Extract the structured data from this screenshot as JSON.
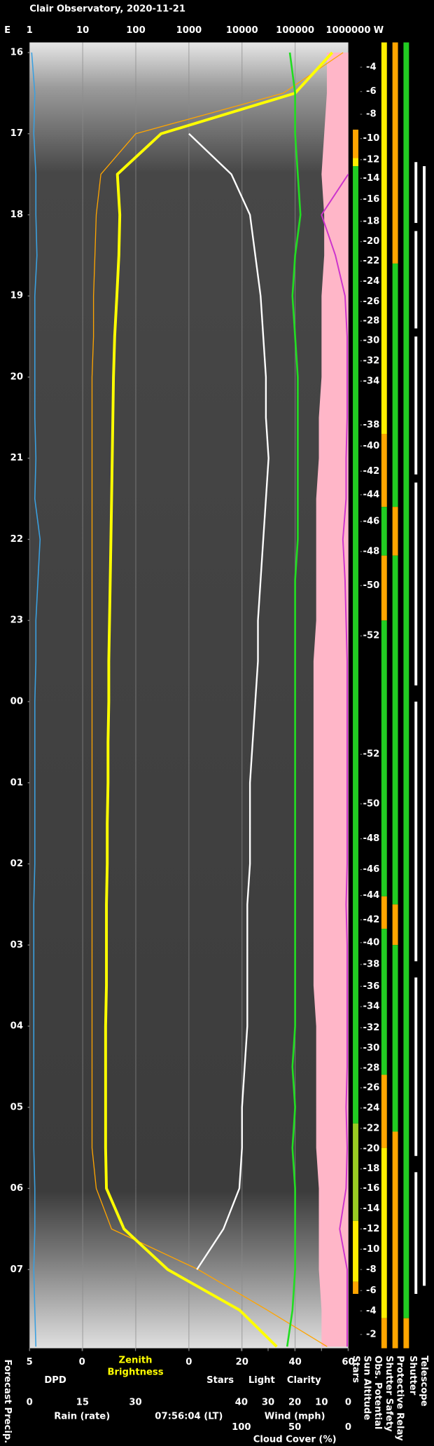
{
  "title": "Clair Observatory, 2020-11-21",
  "east_label": "E",
  "west_label": "W",
  "timestamp": "07:56:04 (LT)",
  "forecast_precip": "Forecast Precip.",
  "chart_data": {
    "type": "line",
    "xscale": "log",
    "xlim": [
      1,
      1000000
    ],
    "xticks": [
      1,
      10,
      100,
      1000,
      10000,
      100000,
      1000000
    ],
    "grid": true,
    "ylim": [
      15.875,
      31.97
    ],
    "yticks": [
      16,
      17,
      18,
      19,
      20,
      21,
      22,
      23,
      {
        "value": 24,
        "label": "00"
      },
      {
        "value": 25,
        "label": "01"
      },
      {
        "value": 26,
        "label": "02"
      },
      {
        "value": 27,
        "label": "03"
      },
      {
        "value": 28,
        "label": "04"
      },
      {
        "value": 29,
        "label": "05"
      },
      {
        "value": 30,
        "label": "06"
      },
      {
        "value": 31,
        "label": "07"
      }
    ],
    "axes": {
      "dpd": {
        "label": "DPD",
        "color": "#2f8fe8",
        "lim": [
          5,
          0
        ],
        "ticks": [
          5,
          0
        ]
      },
      "stars": {
        "lim": [
          0,
          60
        ],
        "ticks": [
          0,
          20,
          40,
          60
        ]
      },
      "rain": {
        "label": "Rain (rate)",
        "color": "#22b8f0",
        "lim": [
          0,
          30
        ],
        "ticks": [
          0,
          15,
          30
        ]
      },
      "wind": {
        "label": "Wind (mph)",
        "color": "#ff9fc0",
        "lim": [
          40,
          0
        ],
        "ticks": [
          40,
          30,
          20,
          10,
          0
        ]
      },
      "cloud": {
        "label": "Cloud Cover (%)",
        "color": "#e020e0",
        "lim": [
          100,
          0
        ],
        "ticks": [
          100,
          50,
          0
        ]
      }
    },
    "x": [
      16,
      16.5,
      17,
      17.5,
      18,
      18.5,
      19,
      19.5,
      20,
      20.5,
      21,
      21.5,
      22,
      22.5,
      23,
      23.5,
      24,
      24.5,
      25,
      25.5,
      26,
      26.5,
      27,
      27.5,
      28,
      28.5,
      29,
      29.5,
      30,
      30.5,
      31,
      31.5,
      31.95
    ],
    "series": [
      {
        "axis": "dpd",
        "color": "#3aa0e0",
        "values": [
          4.8,
          4.5,
          4.6,
          4.4,
          4.4,
          4.3,
          4.5,
          4.5,
          4.5,
          4.5,
          4.4,
          4.5,
          4.0,
          4.2,
          4.4,
          4.4,
          4.5,
          4.5,
          4.5,
          4.5,
          4.5,
          4.6,
          4.6,
          4.6,
          4.6,
          4.6,
          4.6,
          4.6,
          4.5,
          4.5,
          4.6,
          4.5,
          4.4
        ]
      },
      {
        "name": "Zenith Brightness",
        "axis": "x",
        "color": "#ffff00",
        "values": [
          500000,
          100000,
          300,
          45,
          50,
          48,
          44,
          40,
          38,
          37,
          36,
          35,
          34,
          33,
          32,
          31,
          31,
          30,
          30,
          29,
          29,
          28,
          28,
          28,
          27,
          27,
          27,
          27,
          28,
          60,
          400,
          9000,
          45000
        ]
      },
      {
        "name": "Light",
        "axis": "x",
        "color": "#ffa500",
        "values": [
          800000,
          60000,
          100,
          22,
          18,
          17,
          16,
          16,
          15,
          15,
          15,
          15,
          15,
          15,
          15,
          15,
          15,
          15,
          15,
          15,
          15,
          15,
          15,
          15,
          15,
          15,
          15,
          15,
          18,
          35,
          1500,
          30000,
          400000
        ]
      },
      {
        "name": "Stars",
        "axis": "stars",
        "color": "#ffffff",
        "values": [
          null,
          null,
          0,
          16,
          23,
          25,
          27,
          28,
          29,
          29,
          30,
          29,
          28,
          27,
          26,
          26,
          25,
          24,
          23,
          23,
          23,
          22,
          22,
          22,
          22,
          21,
          20,
          20,
          19,
          13,
          3,
          null,
          null
        ]
      },
      {
        "name": "Clarity",
        "axis": "stars",
        "color": "#22dd22",
        "values": [
          38,
          40,
          40,
          41,
          42,
          40,
          39,
          40,
          41,
          41,
          41,
          41,
          41,
          40,
          40,
          40,
          40,
          40,
          40,
          40,
          40,
          40,
          40,
          40,
          40,
          39,
          40,
          39,
          40,
          40,
          40,
          39,
          37
        ]
      },
      {
        "axis": "cloud",
        "color": "#cc33cc",
        "values": [
          null,
          null,
          null,
          0,
          25,
          12,
          3,
          1,
          1,
          1,
          2,
          2,
          5,
          3,
          2,
          1,
          1,
          1,
          1,
          1,
          1,
          2,
          1,
          1,
          1,
          1,
          2,
          1,
          2,
          8,
          1,
          1,
          1
        ]
      },
      {
        "axis": "wind",
        "kind": "area",
        "color": "#ffb6c8",
        "values": [
          8,
          8,
          9,
          10,
          9,
          9,
          10,
          10,
          10,
          11,
          11,
          12,
          12,
          12,
          12,
          13,
          13,
          13,
          13,
          13,
          13,
          13,
          13,
          13,
          12,
          12,
          12,
          12,
          11,
          11,
          11,
          10,
          10
        ]
      }
    ],
    "sun_altitude": {
      "name": "Sun Altitude",
      "values": [
        -4,
        -6,
        -8,
        -10,
        -12,
        -14,
        -16,
        -18,
        -20,
        -22,
        -24,
        -26,
        -28,
        -30,
        -32,
        -34,
        -38,
        -40,
        -42,
        -44,
        -46,
        -48,
        -50,
        -52,
        -52,
        -50,
        -48,
        -46,
        -44,
        -42,
        -40,
        -38,
        -36,
        -34,
        -32,
        -30,
        -28,
        -26,
        -24,
        -22,
        -20,
        -18,
        -16,
        -14,
        -12,
        -10,
        -8,
        -6,
        -4,
        -2
      ],
      "times": [
        16.18,
        16.48,
        16.76,
        17.06,
        17.32,
        17.55,
        17.81,
        18.08,
        18.33,
        18.57,
        18.82,
        19.07,
        19.31,
        19.55,
        19.8,
        20.05,
        20.59,
        20.85,
        21.16,
        21.45,
        21.78,
        22.15,
        22.57,
        23.19,
        24.65,
        25.26,
        25.69,
        26.07,
        26.39,
        26.69,
        26.97,
        27.24,
        27.51,
        27.76,
        28.02,
        28.27,
        28.52,
        28.76,
        29.01,
        29.26,
        29.51,
        29.76,
        30.0,
        30.25,
        30.5,
        30.75,
        31.0,
        31.26,
        31.51,
        31.8
      ]
    },
    "status": [
      {
        "name": "Stars",
        "segments": [
          [
            16.95,
            17.3,
            "#ffa500"
          ],
          [
            17.3,
            17.4,
            "#ffee00"
          ],
          [
            17.4,
            29.2,
            "#22cc22"
          ],
          [
            29.2,
            30.4,
            "#99cc22"
          ],
          [
            30.4,
            31.15,
            "#ffee00"
          ],
          [
            31.15,
            31.3,
            "#ffa500"
          ]
        ]
      },
      {
        "name": "Obs. Potential",
        "segments": [
          [
            15.875,
            20.7,
            "#ffee00"
          ],
          [
            20.7,
            21.6,
            "#ffa500"
          ],
          [
            21.6,
            22.2,
            "#22cc22"
          ],
          [
            22.2,
            23.0,
            "#ffa500"
          ],
          [
            23.0,
            26.4,
            "#22cc22"
          ],
          [
            26.4,
            26.8,
            "#ffa500"
          ],
          [
            26.8,
            28.6,
            "#22cc22"
          ],
          [
            28.6,
            29.5,
            "#ffa500"
          ],
          [
            29.5,
            31.6,
            "#ffee00"
          ],
          [
            31.6,
            31.97,
            "#ffa500"
          ]
        ]
      },
      {
        "name": "Shutter Safety",
        "segments": [
          [
            15.875,
            18.6,
            "#ffa500"
          ],
          [
            18.6,
            21.6,
            "#22cc22"
          ],
          [
            21.6,
            22.2,
            "#ffa500"
          ],
          [
            22.2,
            26.5,
            "#22cc22"
          ],
          [
            26.5,
            27.0,
            "#ffa500"
          ],
          [
            27.0,
            29.3,
            "#22cc22"
          ],
          [
            29.3,
            31.97,
            "#ffa500"
          ]
        ]
      },
      {
        "name": "Protective Relay",
        "segments": [
          [
            15.875,
            31.6,
            "#22cc22"
          ],
          [
            31.6,
            31.97,
            "#ffa500"
          ]
        ]
      },
      {
        "name": "Shutter",
        "segments": [
          [
            17.35,
            18.1,
            "#ffffff"
          ],
          [
            18.2,
            19.4,
            "#ffffff"
          ],
          [
            19.5,
            21.2,
            "#ffffff"
          ],
          [
            21.3,
            23.8,
            "#ffffff"
          ],
          [
            24.0,
            27.2,
            "#ffffff"
          ],
          [
            27.4,
            29.6,
            "#ffffff"
          ],
          [
            29.8,
            31.3,
            "#ffffff"
          ]
        ]
      },
      {
        "name": "Telescope",
        "segments": [
          [
            17.4,
            31.2,
            "#ffffff"
          ]
        ]
      }
    ]
  }
}
